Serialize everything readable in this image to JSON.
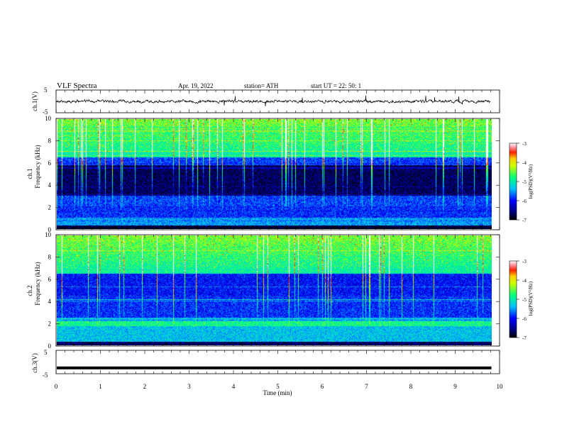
{
  "header": {
    "title": "VLF  Spectra",
    "date": "Apr. 19, 2022",
    "station": "station= ATH",
    "start": "start  UT  =    22: 50: 1"
  },
  "chart_data": [
    {
      "type": "line",
      "name": "ch1-waveform",
      "ylabel": "ch.1(V)",
      "ylim": [
        -5,
        5
      ],
      "yticks": [
        "5",
        "-5"
      ],
      "xlim": [
        0,
        10
      ],
      "baseline": 0,
      "amplitude_note": "noisy trace around 0 V with sparse spikes"
    },
    {
      "type": "heatmap",
      "name": "ch1-spectrogram",
      "ylabel": "ch.1\nFrequency (kHz)",
      "ylim": [
        0,
        10
      ],
      "yticks": [
        "10",
        "8",
        "6",
        "4",
        "2",
        "0"
      ],
      "xlim": [
        0,
        9.8
      ],
      "colorbar": {
        "label": "log(PSD) (V²/Hz)",
        "range": [
          -7,
          -3
        ],
        "ticks": [
          "-3",
          "-4",
          "-5",
          "-6",
          "-7"
        ]
      }
    },
    {
      "type": "heatmap",
      "name": "ch2-spectrogram",
      "ylabel": "ch.2\nFrequency (kHz)",
      "ylim": [
        0,
        10
      ],
      "yticks": [
        "10",
        "8",
        "6",
        "4",
        "2",
        "0"
      ],
      "xlim": [
        0,
        9.8
      ],
      "colorbar": {
        "label": "log(PSD) (V²/Hz)",
        "range": [
          -7,
          -3
        ],
        "ticks": [
          "-3",
          "-4",
          "-5",
          "-6",
          "-7"
        ]
      }
    },
    {
      "type": "line",
      "name": "ch3-waveform",
      "ylabel": "ch.3(V)",
      "ylim": [
        -5,
        5
      ],
      "yticks": [
        "5",
        "-5"
      ],
      "xlim": [
        0,
        9.8
      ],
      "value": -2.5
    }
  ],
  "xaxis": {
    "label": "Time  (min)",
    "ticks": [
      "0",
      "1",
      "2",
      "3",
      "4",
      "5",
      "6",
      "7",
      "8",
      "9",
      "10"
    ]
  },
  "colorbar_label": "log(PSD)(V²/Hz)",
  "colorbar_ticks": [
    "-3",
    "-4",
    "-5",
    "-6",
    "-7"
  ],
  "colors": {
    "axis": "#000000",
    "background": "#ffffff"
  }
}
